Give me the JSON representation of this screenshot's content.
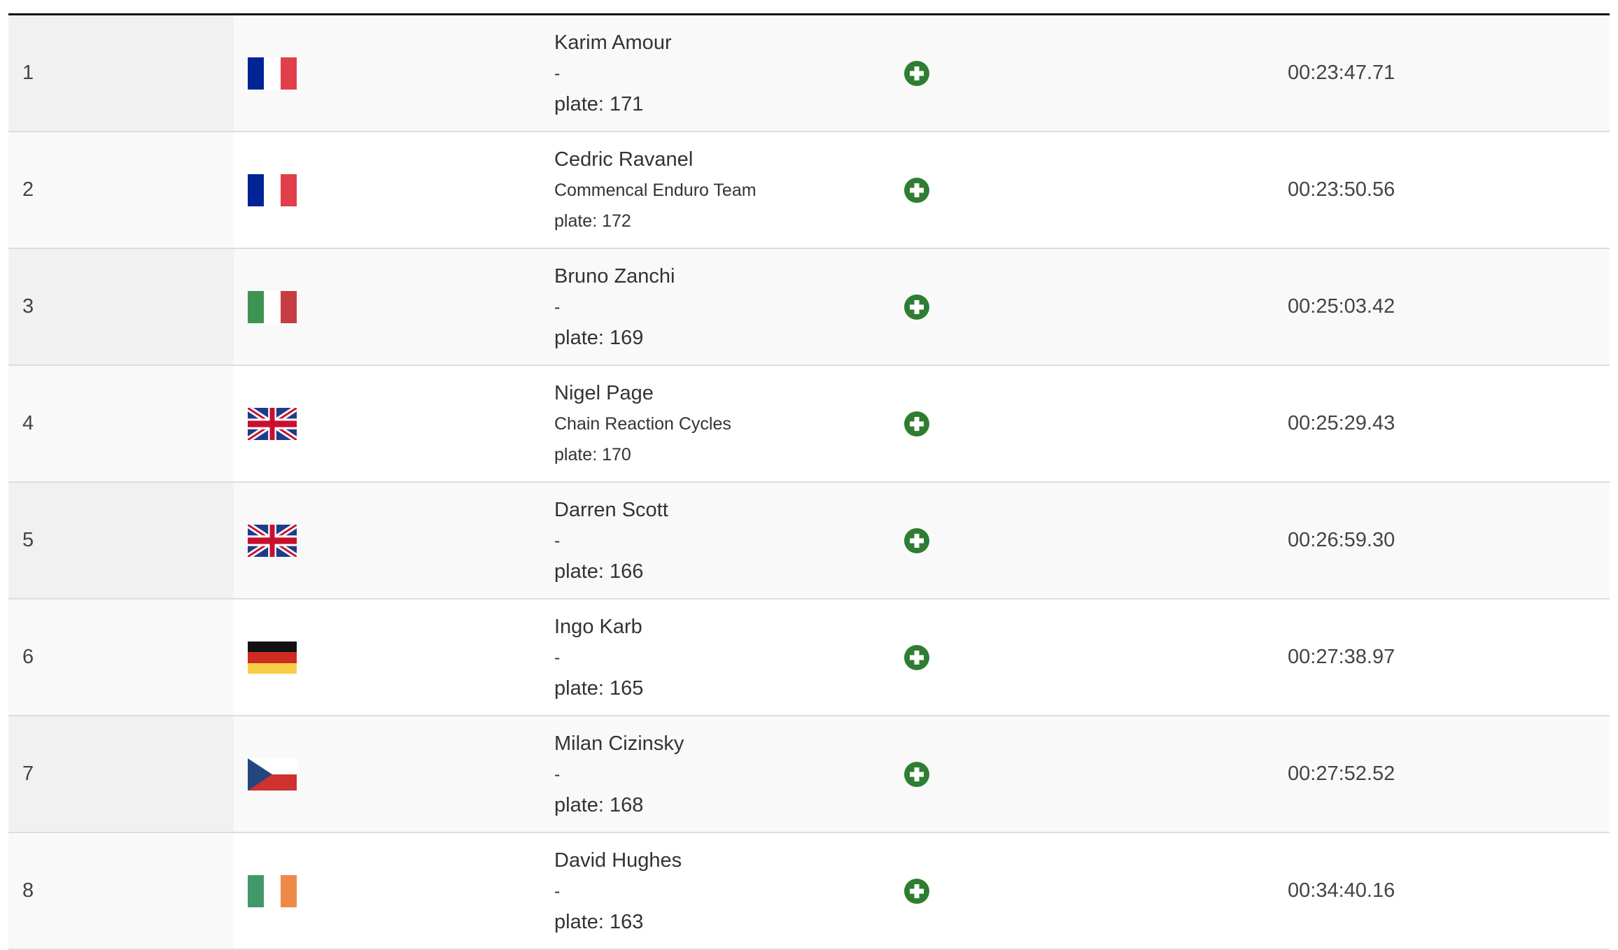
{
  "colors": {
    "add_icon": "#2e7d32",
    "header_border": "#111111"
  },
  "rows": [
    {
      "rank": "1",
      "country": "FR",
      "name": "Karim Amour",
      "team": "-",
      "plate": "plate: 171",
      "time": "00:23:47.71",
      "icon": "plus-circle-icon"
    },
    {
      "rank": "2",
      "country": "FR",
      "name": "Cedric Ravanel",
      "team": "Commencal Enduro Team",
      "plate": "plate: 172",
      "time": "00:23:50.56",
      "icon": "plus-circle-icon"
    },
    {
      "rank": "3",
      "country": "IT",
      "name": "Bruno Zanchi",
      "team": "-",
      "plate": "plate: 169",
      "time": "00:25:03.42",
      "icon": "plus-circle-icon"
    },
    {
      "rank": "4",
      "country": "GB",
      "name": "Nigel Page",
      "team": "Chain Reaction Cycles",
      "plate": "plate: 170",
      "time": "00:25:29.43",
      "icon": "plus-circle-icon"
    },
    {
      "rank": "5",
      "country": "GB",
      "name": "Darren Scott",
      "team": "-",
      "plate": "plate: 166",
      "time": "00:26:59.30",
      "icon": "plus-circle-icon"
    },
    {
      "rank": "6",
      "country": "DE",
      "name": "Ingo Karb",
      "team": "-",
      "plate": "plate: 165",
      "time": "00:27:38.97",
      "icon": "plus-circle-icon"
    },
    {
      "rank": "7",
      "country": "CZ",
      "name": "Milan Cizinsky",
      "team": "-",
      "plate": "plate: 168",
      "time": "00:27:52.52",
      "icon": "plus-circle-icon"
    },
    {
      "rank": "8",
      "country": "IE",
      "name": "David Hughes",
      "team": "-",
      "plate": "plate: 163",
      "time": "00:34:40.16",
      "icon": "plus-circle-icon"
    }
  ]
}
